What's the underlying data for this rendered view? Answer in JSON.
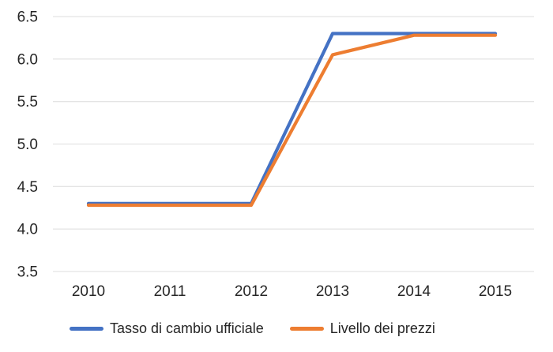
{
  "chart_data": {
    "type": "line",
    "title": "",
    "xlabel": "",
    "ylabel": "",
    "categories": [
      "2010",
      "2011",
      "2012",
      "2013",
      "2014",
      "2015"
    ],
    "series": [
      {
        "name": "Tasso di cambio ufficiale",
        "color": "#4472C4",
        "values": [
          4.3,
          4.3,
          4.3,
          6.3,
          6.3,
          6.3
        ]
      },
      {
        "name": "Livello dei prezzi",
        "color": "#ED7D31",
        "values": [
          4.28,
          4.28,
          4.28,
          6.05,
          6.28,
          6.28
        ]
      }
    ],
    "y_ticks": [
      "6.5",
      "6.0",
      "5.5",
      "5.0",
      "4.5",
      "4.0",
      "3.5"
    ],
    "ylim": [
      3.5,
      6.5
    ],
    "grid": true,
    "legend_position": "bottom"
  },
  "colors": {
    "gridline": "#e4e4e4",
    "text": "#262626",
    "background": "#ffffff"
  }
}
